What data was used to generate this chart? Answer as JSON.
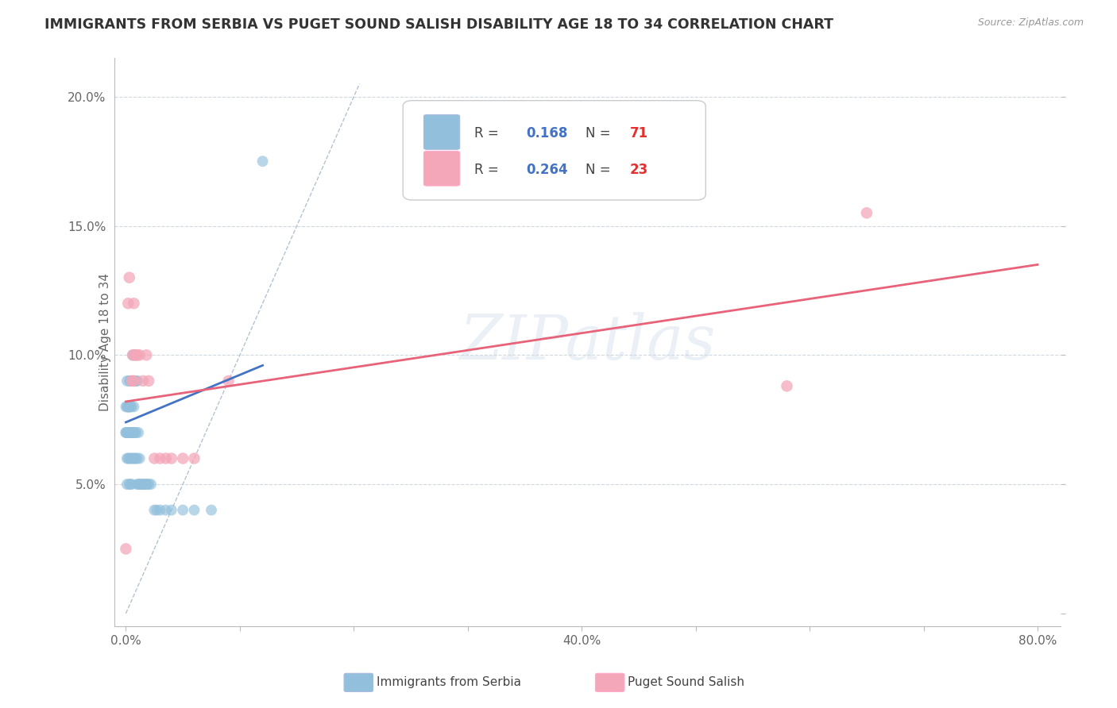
{
  "title": "IMMIGRANTS FROM SERBIA VS PUGET SOUND SALISH DISABILITY AGE 18 TO 34 CORRELATION CHART",
  "source": "Source: ZipAtlas.com",
  "ylabel": "Disability Age 18 to 34",
  "xlim": [
    -0.01,
    0.82
  ],
  "ylim": [
    -0.005,
    0.215
  ],
  "xtick_positions": [
    0.0,
    0.1,
    0.2,
    0.3,
    0.4,
    0.5,
    0.6,
    0.7,
    0.8
  ],
  "xticklabels": [
    "0.0%",
    "",
    "",
    "",
    "40.0%",
    "",
    "",
    "",
    "80.0%"
  ],
  "ytick_positions": [
    0.0,
    0.05,
    0.1,
    0.15,
    0.2
  ],
  "yticklabels": [
    "",
    "5.0%",
    "10.0%",
    "15.0%",
    "20.0%"
  ],
  "R1": "0.168",
  "N1": "71",
  "R2": "0.264",
  "N2": "23",
  "blue_color": "#92C0DC",
  "pink_color": "#F4A7B9",
  "blue_line_color": "#4472C4",
  "pink_line_color": "#E8637A",
  "diag_color": "#AABCCC",
  "grid_color": "#D0D8E0",
  "watermark": "ZIPatlas",
  "legend1_label": "Immigrants from Serbia",
  "legend2_label": "Puget Sound Salish",
  "serbia_x": [
    0.0,
    0.0,
    0.0,
    0.001,
    0.001,
    0.001,
    0.001,
    0.001,
    0.002,
    0.002,
    0.002,
    0.002,
    0.002,
    0.003,
    0.003,
    0.003,
    0.003,
    0.003,
    0.003,
    0.003,
    0.004,
    0.004,
    0.004,
    0.004,
    0.004,
    0.004,
    0.005,
    0.005,
    0.005,
    0.005,
    0.005,
    0.005,
    0.006,
    0.006,
    0.006,
    0.006,
    0.007,
    0.007,
    0.007,
    0.007,
    0.008,
    0.008,
    0.008,
    0.009,
    0.009,
    0.009,
    0.01,
    0.01,
    0.01,
    0.011,
    0.011,
    0.012,
    0.012,
    0.013,
    0.014,
    0.015,
    0.016,
    0.017,
    0.018,
    0.019,
    0.02,
    0.022,
    0.025,
    0.027,
    0.03,
    0.035,
    0.04,
    0.05,
    0.06,
    0.075,
    0.12
  ],
  "serbia_y": [
    0.07,
    0.07,
    0.08,
    0.05,
    0.06,
    0.07,
    0.08,
    0.09,
    0.06,
    0.07,
    0.07,
    0.08,
    0.08,
    0.05,
    0.06,
    0.07,
    0.07,
    0.08,
    0.08,
    0.09,
    0.05,
    0.06,
    0.07,
    0.07,
    0.08,
    0.09,
    0.05,
    0.06,
    0.07,
    0.07,
    0.08,
    0.09,
    0.06,
    0.07,
    0.07,
    0.1,
    0.06,
    0.07,
    0.08,
    0.1,
    0.06,
    0.07,
    0.09,
    0.06,
    0.07,
    0.09,
    0.05,
    0.06,
    0.09,
    0.05,
    0.07,
    0.05,
    0.06,
    0.05,
    0.05,
    0.05,
    0.05,
    0.05,
    0.05,
    0.05,
    0.05,
    0.05,
    0.04,
    0.04,
    0.04,
    0.04,
    0.04,
    0.04,
    0.04,
    0.04,
    0.175
  ],
  "salish_x": [
    0.0,
    0.002,
    0.003,
    0.005,
    0.006,
    0.007,
    0.007,
    0.008,
    0.009,
    0.01,
    0.012,
    0.015,
    0.018,
    0.02,
    0.025,
    0.03,
    0.035,
    0.04,
    0.05,
    0.06,
    0.09,
    0.58,
    0.65
  ],
  "salish_y": [
    0.025,
    0.12,
    0.13,
    0.09,
    0.1,
    0.09,
    0.12,
    0.1,
    0.1,
    0.1,
    0.1,
    0.09,
    0.1,
    0.09,
    0.06,
    0.06,
    0.06,
    0.06,
    0.06,
    0.06,
    0.09,
    0.088,
    0.155
  ],
  "serbia_trend_x": [
    0.0,
    0.12
  ],
  "serbia_trend_y": [
    0.074,
    0.096
  ],
  "salish_trend_x": [
    0.0,
    0.8
  ],
  "salish_trend_y": [
    0.082,
    0.135
  ]
}
